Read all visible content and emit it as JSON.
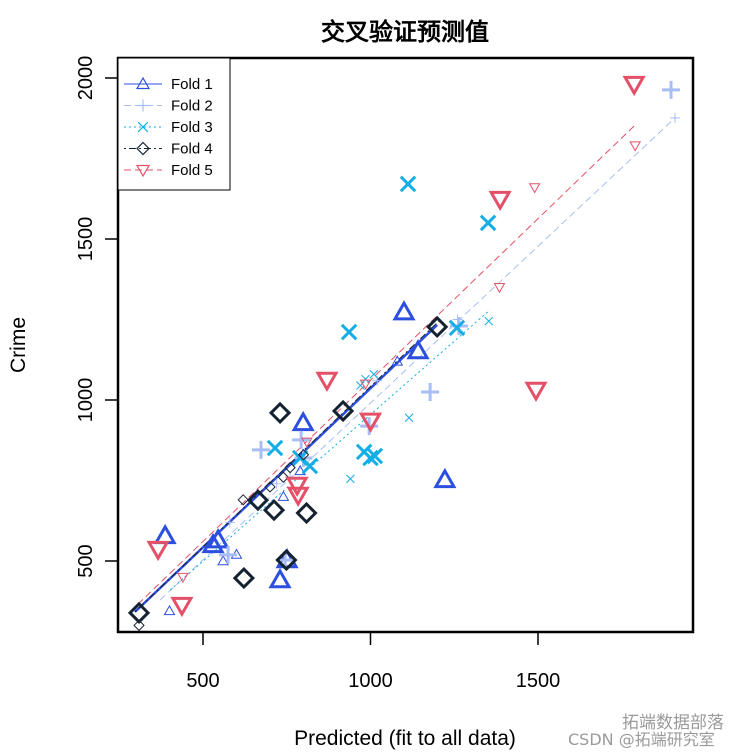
{
  "chart_data": {
    "type": "scatter",
    "title": "交叉验证预测值",
    "xlabel": "Predicted (fit to all data)",
    "ylabel": "Crime",
    "xlim": [
      250,
      1970
    ],
    "ylim": [
      260,
      2040
    ],
    "xticks": [
      500,
      1000,
      1500
    ],
    "yticks": [
      500,
      1000,
      1500,
      2000
    ],
    "grid": false,
    "legend_position": "top-left",
    "series": [
      {
        "name": "Fold 1",
        "color": "#2d4fe0",
        "symbol": "triangle-up",
        "line": "solid",
        "line_x": [
          297,
          1199
        ],
        "line_y": [
          342,
          1233
        ],
        "test_points": [
          [
            387,
            578
          ],
          [
            530,
            550
          ],
          [
            545,
            565
          ],
          [
            730,
            441
          ],
          [
            799,
            929
          ],
          [
            1100,
            1273
          ],
          [
            1142,
            1152
          ],
          [
            1222,
            752
          ],
          [
            751,
            503
          ]
        ],
        "fit_points": [
          [
            400,
            345
          ],
          [
            560,
            500
          ],
          [
            600,
            520
          ],
          [
            740,
            700
          ],
          [
            790,
            780
          ],
          [
            1080,
            1120
          ]
        ]
      },
      {
        "name": "Fold 2",
        "color": "#a8bdf5",
        "symbol": "plus",
        "line": "dashed",
        "line_x": [
          372,
          1909
        ],
        "line_y": [
          379,
          1876
        ],
        "test_points": [
          [
            1897,
            1963
          ],
          [
            1264,
            1230
          ],
          [
            1178,
            1025
          ],
          [
            793,
            876
          ],
          [
            673,
            845
          ],
          [
            575,
            519
          ],
          [
            745,
            503
          ],
          [
            996,
            919
          ],
          [
            800,
            820
          ]
        ],
        "fit_points": [
          [
            1909,
            1876
          ],
          [
            580,
            620
          ],
          [
            720,
            740
          ],
          [
            1020,
            1060
          ],
          [
            1260,
            1250
          ],
          [
            760,
            760
          ]
        ]
      },
      {
        "name": "Fold 3",
        "color": "#14aee6",
        "symbol": "cross",
        "line": "dotted",
        "line_x": [
          402,
          1357
        ],
        "line_y": [
          410,
          1280
        ],
        "test_points": [
          [
            1112,
            1671
          ],
          [
            1351,
            1550
          ],
          [
            936,
            1211
          ],
          [
            715,
            851
          ],
          [
            819,
            795
          ],
          [
            981,
            839
          ],
          [
            1000,
            820
          ],
          [
            1013,
            826
          ],
          [
            1258,
            1224
          ],
          [
            790,
            820
          ]
        ],
        "fit_points": [
          [
            1115,
            945
          ],
          [
            940,
            755
          ],
          [
            985,
            1065
          ],
          [
            1010,
            1080
          ],
          [
            1353,
            1245
          ],
          [
            970,
            1045
          ]
        ]
      },
      {
        "name": "Fold 4",
        "color": "#152231",
        "symbol": "diamond",
        "line": "dotdash",
        "line_x": [
          297,
          1207
        ],
        "line_y": [
          342,
          1248
        ],
        "test_points": [
          [
            309,
            339
          ],
          [
            622,
            447
          ],
          [
            730,
            960
          ],
          [
            664,
            689
          ],
          [
            712,
            658
          ],
          [
            809,
            649
          ],
          [
            749,
            503
          ],
          [
            918,
            966
          ],
          [
            1199,
            1227
          ]
        ],
        "fit_points": [
          [
            309,
            300
          ],
          [
            620,
            690
          ],
          [
            740,
            760
          ],
          [
            760,
            790
          ],
          [
            700,
            730
          ],
          [
            800,
            830
          ]
        ]
      },
      {
        "name": "Fold 5",
        "color": "#e45068",
        "symbol": "triangle-down",
        "line": "dashed",
        "line_x": [
          282,
          1787
        ],
        "line_y": [
          342,
          1851
        ],
        "test_points": [
          [
            1787,
            1981
          ],
          [
            1387,
            1624
          ],
          [
            1494,
            1031
          ],
          [
            870,
            1062
          ],
          [
            1000,
            935
          ],
          [
            781,
            736
          ],
          [
            784,
            705
          ],
          [
            366,
            537
          ],
          [
            437,
            363
          ]
        ],
        "fit_points": [
          [
            1790,
            1790
          ],
          [
            1490,
            1660
          ],
          [
            1385,
            1350
          ],
          [
            440,
            450
          ],
          [
            810,
            870
          ],
          [
            985,
            1050
          ]
        ]
      }
    ]
  },
  "watermark": {
    "line1": "拓端数据部落",
    "line2": "CSDN @拓端研究室"
  }
}
